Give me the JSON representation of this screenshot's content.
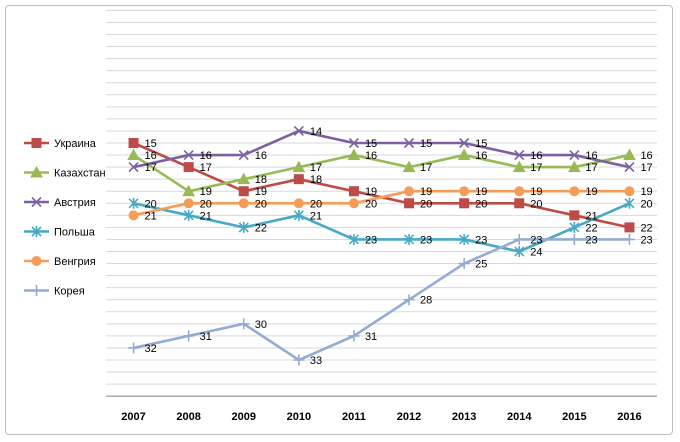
{
  "chart_data": {
    "type": "line",
    "title": "",
    "xlabel": "",
    "ylabel": "",
    "categories": [
      "2007",
      "2008",
      "2009",
      "2010",
      "2011",
      "2012",
      "2013",
      "2014",
      "2015",
      "2016"
    ],
    "y_inverted": true,
    "ylim": [
      1,
      36
    ],
    "grid": true,
    "legend_position": "left",
    "series": [
      {
        "name": "Украина",
        "color": "#be4b48",
        "marker": "square",
        "values": [
          15,
          17,
          19,
          18,
          19,
          20,
          20,
          20,
          21,
          22
        ]
      },
      {
        "name": "Казахстан",
        "color": "#98b954",
        "marker": "triangle",
        "values": [
          16,
          19,
          18,
          17,
          16,
          17,
          16,
          17,
          17,
          16
        ]
      },
      {
        "name": "Австрия",
        "color": "#7d60a0",
        "marker": "x",
        "values": [
          17,
          16,
          16,
          14,
          15,
          15,
          15,
          16,
          16,
          17
        ]
      },
      {
        "name": "Польша",
        "color": "#46aac5",
        "marker": "star",
        "values": [
          20,
          21,
          22,
          21,
          23,
          23,
          23,
          24,
          22,
          20
        ]
      },
      {
        "name": "Венгрия",
        "color": "#f59d56",
        "marker": "circle",
        "values": [
          21,
          20,
          20,
          20,
          20,
          19,
          19,
          19,
          19,
          19
        ]
      },
      {
        "name": "Корея",
        "color": "#95abd3",
        "marker": "plus",
        "values": [
          32,
          31,
          30,
          33,
          31,
          28,
          25,
          23,
          23,
          23
        ]
      }
    ]
  }
}
